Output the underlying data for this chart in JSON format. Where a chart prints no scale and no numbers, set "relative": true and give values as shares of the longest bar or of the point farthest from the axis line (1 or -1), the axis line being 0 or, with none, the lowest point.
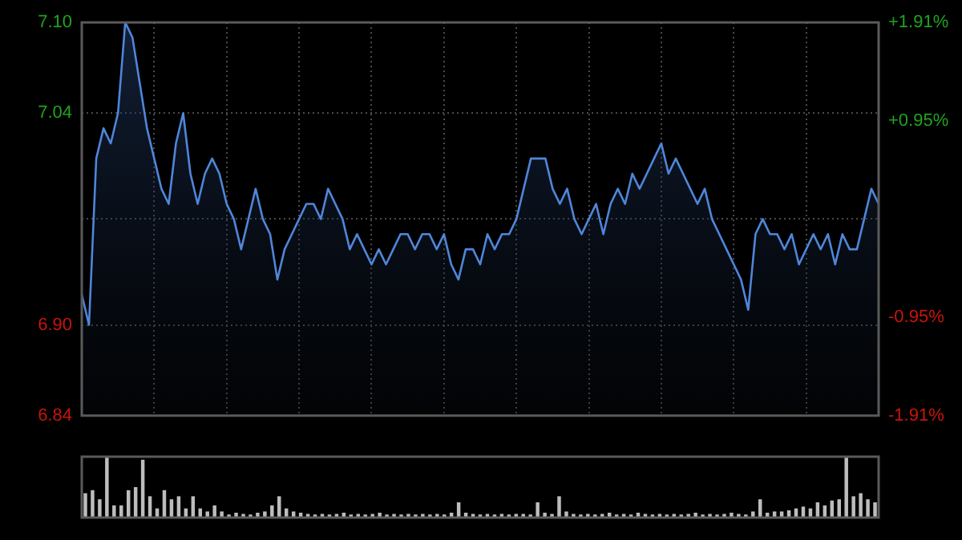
{
  "chart_data": [
    {
      "type": "area",
      "categories": [
        null,
        null,
        null,
        null,
        null,
        null,
        null,
        null,
        null,
        null,
        null,
        null,
        null,
        null,
        null,
        null,
        null,
        null,
        null,
        null,
        null,
        null,
        null,
        null,
        null,
        null,
        null,
        null,
        null,
        null,
        null,
        null,
        null,
        null,
        null,
        null,
        null,
        null,
        null,
        null,
        null,
        null,
        null,
        null,
        null,
        null,
        null,
        null,
        null,
        null,
        null,
        null,
        null,
        null,
        null,
        null,
        null,
        null,
        null,
        null,
        null,
        null,
        null,
        null,
        null,
        null,
        null,
        null,
        null,
        null,
        null,
        null,
        null,
        null,
        null,
        null,
        null,
        null,
        null,
        null,
        null,
        null,
        null,
        null,
        null,
        null,
        null,
        null,
        null,
        null,
        null,
        null,
        null,
        null,
        null,
        null,
        null,
        null,
        null,
        null,
        null,
        null,
        null,
        null,
        null,
        null,
        null,
        null,
        null,
        null,
        null
      ],
      "series": [
        {
          "color": "#4f86d9",
          "values": [
            6.92,
            6.9,
            7.01,
            7.03,
            7.02,
            7.04,
            7.1,
            7.09,
            7.06,
            7.03,
            7.01,
            6.99,
            6.98,
            7.02,
            7.04,
            7.0,
            6.98,
            7.0,
            7.01,
            7.0,
            6.98,
            6.97,
            6.95,
            6.97,
            6.99,
            6.97,
            6.96,
            6.93,
            6.95,
            6.96,
            6.97,
            6.98,
            6.98,
            6.97,
            6.99,
            6.98,
            6.97,
            6.95,
            6.96,
            6.95,
            6.94,
            6.95,
            6.94,
            6.95,
            6.96,
            6.96,
            6.95,
            6.96,
            6.96,
            6.95,
            6.96,
            6.94,
            6.93,
            6.95,
            6.95,
            6.94,
            6.96,
            6.95,
            6.96,
            6.96,
            6.97,
            6.99,
            7.01,
            7.01,
            7.01,
            6.99,
            6.98,
            6.99,
            6.97,
            6.96,
            6.97,
            6.98,
            6.96,
            6.98,
            6.99,
            6.98,
            7.0,
            6.99,
            7.0,
            7.01,
            7.02,
            7.0,
            7.01,
            7.0,
            6.99,
            6.98,
            6.99,
            6.97,
            6.96,
            6.95,
            6.94,
            6.93,
            6.91,
            6.96,
            6.97,
            6.96,
            6.96,
            6.95,
            6.96,
            6.94,
            6.95,
            6.96,
            6.95,
            6.96,
            6.94,
            6.96,
            6.95,
            6.95,
            6.97,
            6.99,
            6.98
          ]
        }
      ],
      "ylim": [
        6.84,
        7.1
      ],
      "yticks": [
        {
          "value": 6.84,
          "label": "6.84"
        },
        {
          "value": 6.9,
          "label": "6.90"
        },
        {
          "value": 6.97,
          "label": null
        },
        {
          "value": 7.04,
          "label": "7.04"
        },
        {
          "value": 7.1,
          "label": "7.10"
        }
      ],
      "y2lim": [
        -1.91,
        1.91
      ],
      "y2ticks": [
        {
          "value": -1.91,
          "label": "-1.91%"
        },
        {
          "value": -0.95,
          "label": "-0.95%"
        },
        {
          "value": 0.95,
          "label": "+0.95%"
        },
        {
          "value": 1.91,
          "label": "+1.91%"
        }
      ],
      "grid": true,
      "legend": false,
      "marker": "none",
      "line_style": "solid"
    },
    {
      "type": "bar",
      "relative": true,
      "categories": [
        null,
        null,
        null,
        null,
        null,
        null,
        null,
        null,
        null,
        null,
        null,
        null,
        null,
        null,
        null,
        null,
        null,
        null,
        null,
        null,
        null,
        null,
        null,
        null,
        null,
        null,
        null,
        null,
        null,
        null,
        null,
        null,
        null,
        null,
        null,
        null,
        null,
        null,
        null,
        null,
        null,
        null,
        null,
        null,
        null,
        null,
        null,
        null,
        null,
        null,
        null,
        null,
        null,
        null,
        null,
        null,
        null,
        null,
        null,
        null,
        null,
        null,
        null,
        null,
        null,
        null,
        null,
        null,
        null,
        null,
        null,
        null,
        null,
        null,
        null,
        null,
        null,
        null,
        null,
        null,
        null,
        null,
        null,
        null,
        null,
        null,
        null,
        null,
        null,
        null,
        null,
        null,
        null,
        null,
        null,
        null,
        null,
        null,
        null,
        null,
        null,
        null,
        null,
        null,
        null,
        null,
        null,
        null,
        null,
        null,
        null
      ],
      "color": "#bdbdbd",
      "values": [
        0.4,
        0.45,
        0.3,
        1.0,
        0.2,
        0.2,
        0.45,
        0.5,
        0.95,
        0.35,
        0.15,
        0.45,
        0.3,
        0.35,
        0.15,
        0.35,
        0.15,
        0.1,
        0.2,
        0.1,
        0.05,
        0.08,
        0.06,
        0.05,
        0.08,
        0.1,
        0.2,
        0.35,
        0.15,
        0.1,
        0.08,
        0.06,
        0.05,
        0.06,
        0.05,
        0.06,
        0.08,
        0.05,
        0.06,
        0.05,
        0.06,
        0.08,
        0.05,
        0.06,
        0.05,
        0.06,
        0.05,
        0.06,
        0.05,
        0.06,
        0.05,
        0.08,
        0.25,
        0.08,
        0.06,
        0.05,
        0.06,
        0.05,
        0.06,
        0.05,
        0.06,
        0.06,
        0.05,
        0.25,
        0.08,
        0.06,
        0.35,
        0.1,
        0.06,
        0.05,
        0.06,
        0.05,
        0.06,
        0.08,
        0.05,
        0.06,
        0.05,
        0.08,
        0.06,
        0.05,
        0.06,
        0.05,
        0.06,
        0.05,
        0.06,
        0.08,
        0.05,
        0.06,
        0.05,
        0.06,
        0.08,
        0.06,
        0.05,
        0.1,
        0.3,
        0.08,
        0.1,
        0.1,
        0.12,
        0.15,
        0.18,
        0.15,
        0.25,
        0.2,
        0.28,
        0.3,
        1.0,
        0.35,
        0.4,
        0.3,
        0.25
      ],
      "legend": false
    }
  ]
}
